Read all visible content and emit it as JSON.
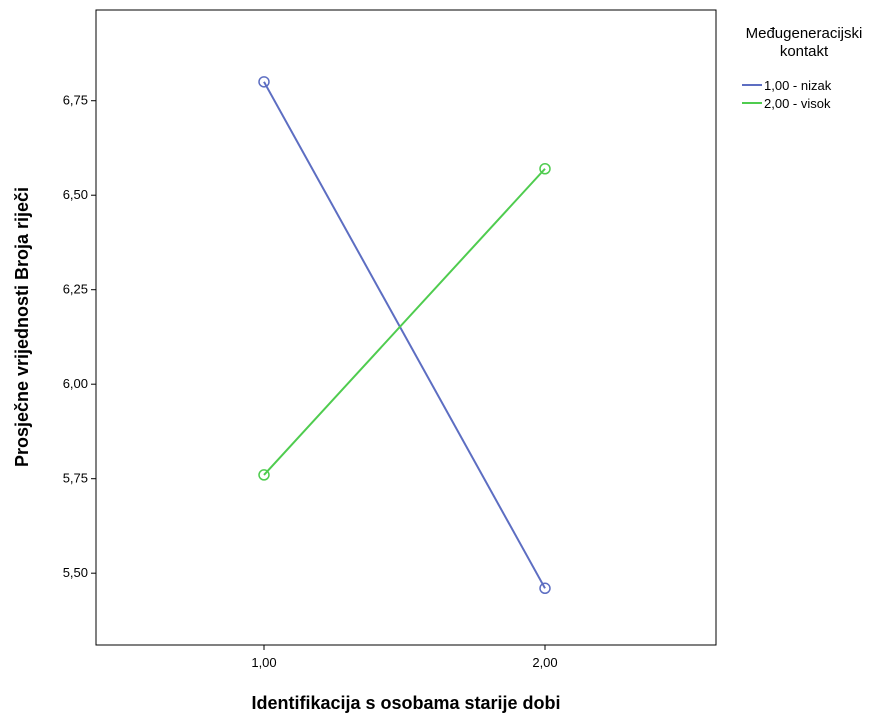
{
  "chart_data": {
    "type": "line",
    "xlabel": "Identifikacija s osobama starije dobi",
    "ylabel": "Prosječne vrijednosti Broja riječi",
    "categories": [
      "1,00",
      "2,00"
    ],
    "yticks": [
      "5,50",
      "5,75",
      "6,00",
      "6,25",
      "6,50",
      "6,75"
    ],
    "ytick_values": [
      5.5,
      5.75,
      6.0,
      6.25,
      6.5,
      6.75
    ],
    "ylim": [
      5.31,
      6.99
    ],
    "grid": false,
    "legend": {
      "title_lines": [
        "Međugeneracijski",
        "kontakt"
      ],
      "placement": "right"
    },
    "series": [
      {
        "name": "1,00 - nizak",
        "color": "#5d6ec2",
        "values": [
          6.8,
          5.46
        ]
      },
      {
        "name": "2,00 - visok",
        "color": "#4fcc4f",
        "values": [
          5.76,
          6.57
        ]
      }
    ]
  }
}
